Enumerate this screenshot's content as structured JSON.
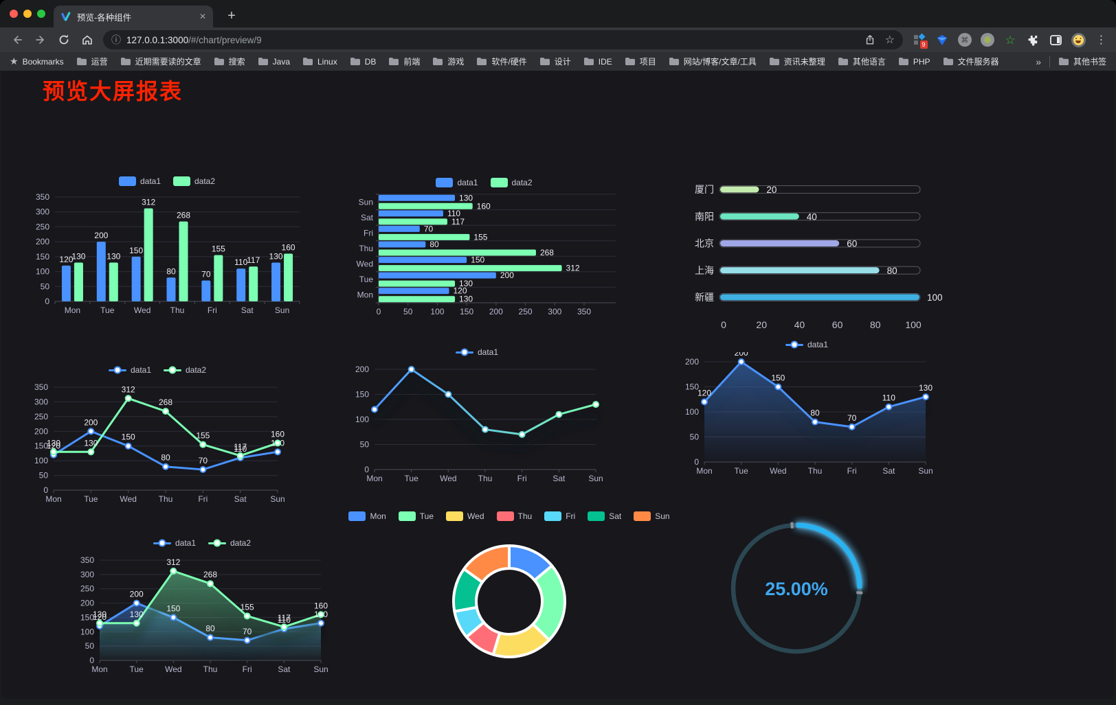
{
  "browser": {
    "tab_title": "预览-各种组件",
    "url_host": "127.0.0.1:3000",
    "url_path": "/#/chart/preview/9",
    "extension_badge": "9",
    "bookmarks_label": "Bookmarks",
    "bookmarks": [
      "运营",
      "近期需要读的文章",
      "搜索",
      "Java",
      "Linux",
      "DB",
      "前端",
      "游戏",
      "软件/硬件",
      "设计",
      "IDE",
      "项目",
      "网站/博客/文章/工具",
      "资讯未整理",
      "其他语言",
      "PHP",
      "文件服务器"
    ],
    "bookmarks_overflow": "»",
    "other_bookmarks": "其他书签"
  },
  "page": {
    "title": "预览大屏报表"
  },
  "chart_data": [
    {
      "name": "grouped-bar",
      "type": "bar",
      "categories": [
        "Mon",
        "Tue",
        "Wed",
        "Thu",
        "Fri",
        "Sat",
        "Sun"
      ],
      "series": [
        {
          "name": "data1",
          "color": "#4992ff",
          "values": [
            120,
            200,
            150,
            80,
            70,
            110,
            130
          ]
        },
        {
          "name": "data2",
          "color": "#7cffb2",
          "values": [
            130,
            130,
            312,
            268,
            155,
            117,
            160
          ]
        }
      ],
      "ylim": [
        0,
        350
      ],
      "ystep": 50,
      "legend_position": "top",
      "grid": true,
      "labels": true
    },
    {
      "name": "grouped-bar-horizontal",
      "type": "bar-horizontal",
      "categories": [
        "Mon",
        "Tue",
        "Wed",
        "Thu",
        "Fri",
        "Sat",
        "Sun"
      ],
      "series": [
        {
          "name": "data1",
          "color": "#4992ff",
          "values": [
            120,
            200,
            150,
            80,
            70,
            110,
            130
          ]
        },
        {
          "name": "data2",
          "color": "#7cffb2",
          "values": [
            130,
            130,
            312,
            268,
            155,
            117,
            160
          ]
        }
      ],
      "xlim": [
        0,
        350
      ],
      "xstep": 50,
      "legend_position": "top",
      "grid": true,
      "labels": true
    },
    {
      "name": "city-progress",
      "type": "progress",
      "items": [
        {
          "label": "厦门",
          "value": 20,
          "color": "#c4ebad"
        },
        {
          "label": "南阳",
          "value": 40,
          "color": "#6be6c1"
        },
        {
          "label": "北京",
          "value": 60,
          "color": "#a0a7e6"
        },
        {
          "label": "上海",
          "value": 80,
          "color": "#96dee8"
        },
        {
          "label": "新疆",
          "value": 100,
          "color": "#3fb1e3"
        }
      ],
      "max": 100,
      "ticks": [
        0,
        20,
        40,
        60,
        80,
        100
      ]
    },
    {
      "name": "line-dual",
      "type": "line",
      "categories": [
        "Mon",
        "Tue",
        "Wed",
        "Thu",
        "Fri",
        "Sat",
        "Sun"
      ],
      "series": [
        {
          "name": "data1",
          "color": "#4992ff",
          "values": [
            120,
            200,
            150,
            80,
            70,
            110,
            130
          ]
        },
        {
          "name": "data2",
          "color": "#7cffb2",
          "values": [
            130,
            130,
            312,
            268,
            155,
            117,
            160
          ]
        }
      ],
      "ylim": [
        0,
        350
      ],
      "ystep": 50,
      "labels": true,
      "shadow": false
    },
    {
      "name": "line-gradient",
      "type": "line",
      "categories": [
        "Mon",
        "Tue",
        "Wed",
        "Thu",
        "Fri",
        "Sat",
        "Sun"
      ],
      "series": [
        {
          "name": "data1",
          "gradient": [
            "#4992ff",
            "#7cffb2"
          ],
          "values": [
            120,
            200,
            150,
            80,
            70,
            110,
            130
          ]
        }
      ],
      "ylim": [
        0,
        200
      ],
      "ystep": 50,
      "labels": false,
      "shadow": true
    },
    {
      "name": "area-single",
      "type": "line",
      "categories": [
        "Mon",
        "Tue",
        "Wed",
        "Thu",
        "Fri",
        "Sat",
        "Sun"
      ],
      "series": [
        {
          "name": "data1",
          "color": "#4992ff",
          "area": true,
          "values": [
            120,
            200,
            150,
            80,
            70,
            110,
            130
          ]
        }
      ],
      "ylim": [
        0,
        200
      ],
      "ystep": 50,
      "labels": true,
      "shadow": true
    },
    {
      "name": "area-dual",
      "type": "line",
      "categories": [
        "Mon",
        "Tue",
        "Wed",
        "Thu",
        "Fri",
        "Sat",
        "Sun"
      ],
      "series": [
        {
          "name": "data1",
          "color": "#4992ff",
          "area": true,
          "values": [
            120,
            200,
            150,
            80,
            70,
            110,
            130
          ]
        },
        {
          "name": "data2",
          "color": "#7cffb2",
          "area": true,
          "values": [
            130,
            130,
            312,
            268,
            155,
            117,
            160
          ]
        }
      ],
      "ylim": [
        0,
        350
      ],
      "ystep": 50,
      "labels": true,
      "shadow": true
    },
    {
      "name": "week-donut",
      "type": "pie",
      "categories": [
        "Mon",
        "Tue",
        "Wed",
        "Thu",
        "Fri",
        "Sat",
        "Sun"
      ],
      "values": [
        120,
        200,
        150,
        80,
        70,
        110,
        130
      ],
      "colors": [
        "#4992ff",
        "#7cffb2",
        "#fddd60",
        "#ff6e76",
        "#58d9f9",
        "#05c091",
        "#ff8a45"
      ]
    },
    {
      "name": "percent-gauge",
      "type": "gauge",
      "value": 25,
      "label": "25.00%",
      "color": "#29b3f2",
      "track_color": "#2b4752",
      "text_color": "#3fa7ee"
    }
  ]
}
